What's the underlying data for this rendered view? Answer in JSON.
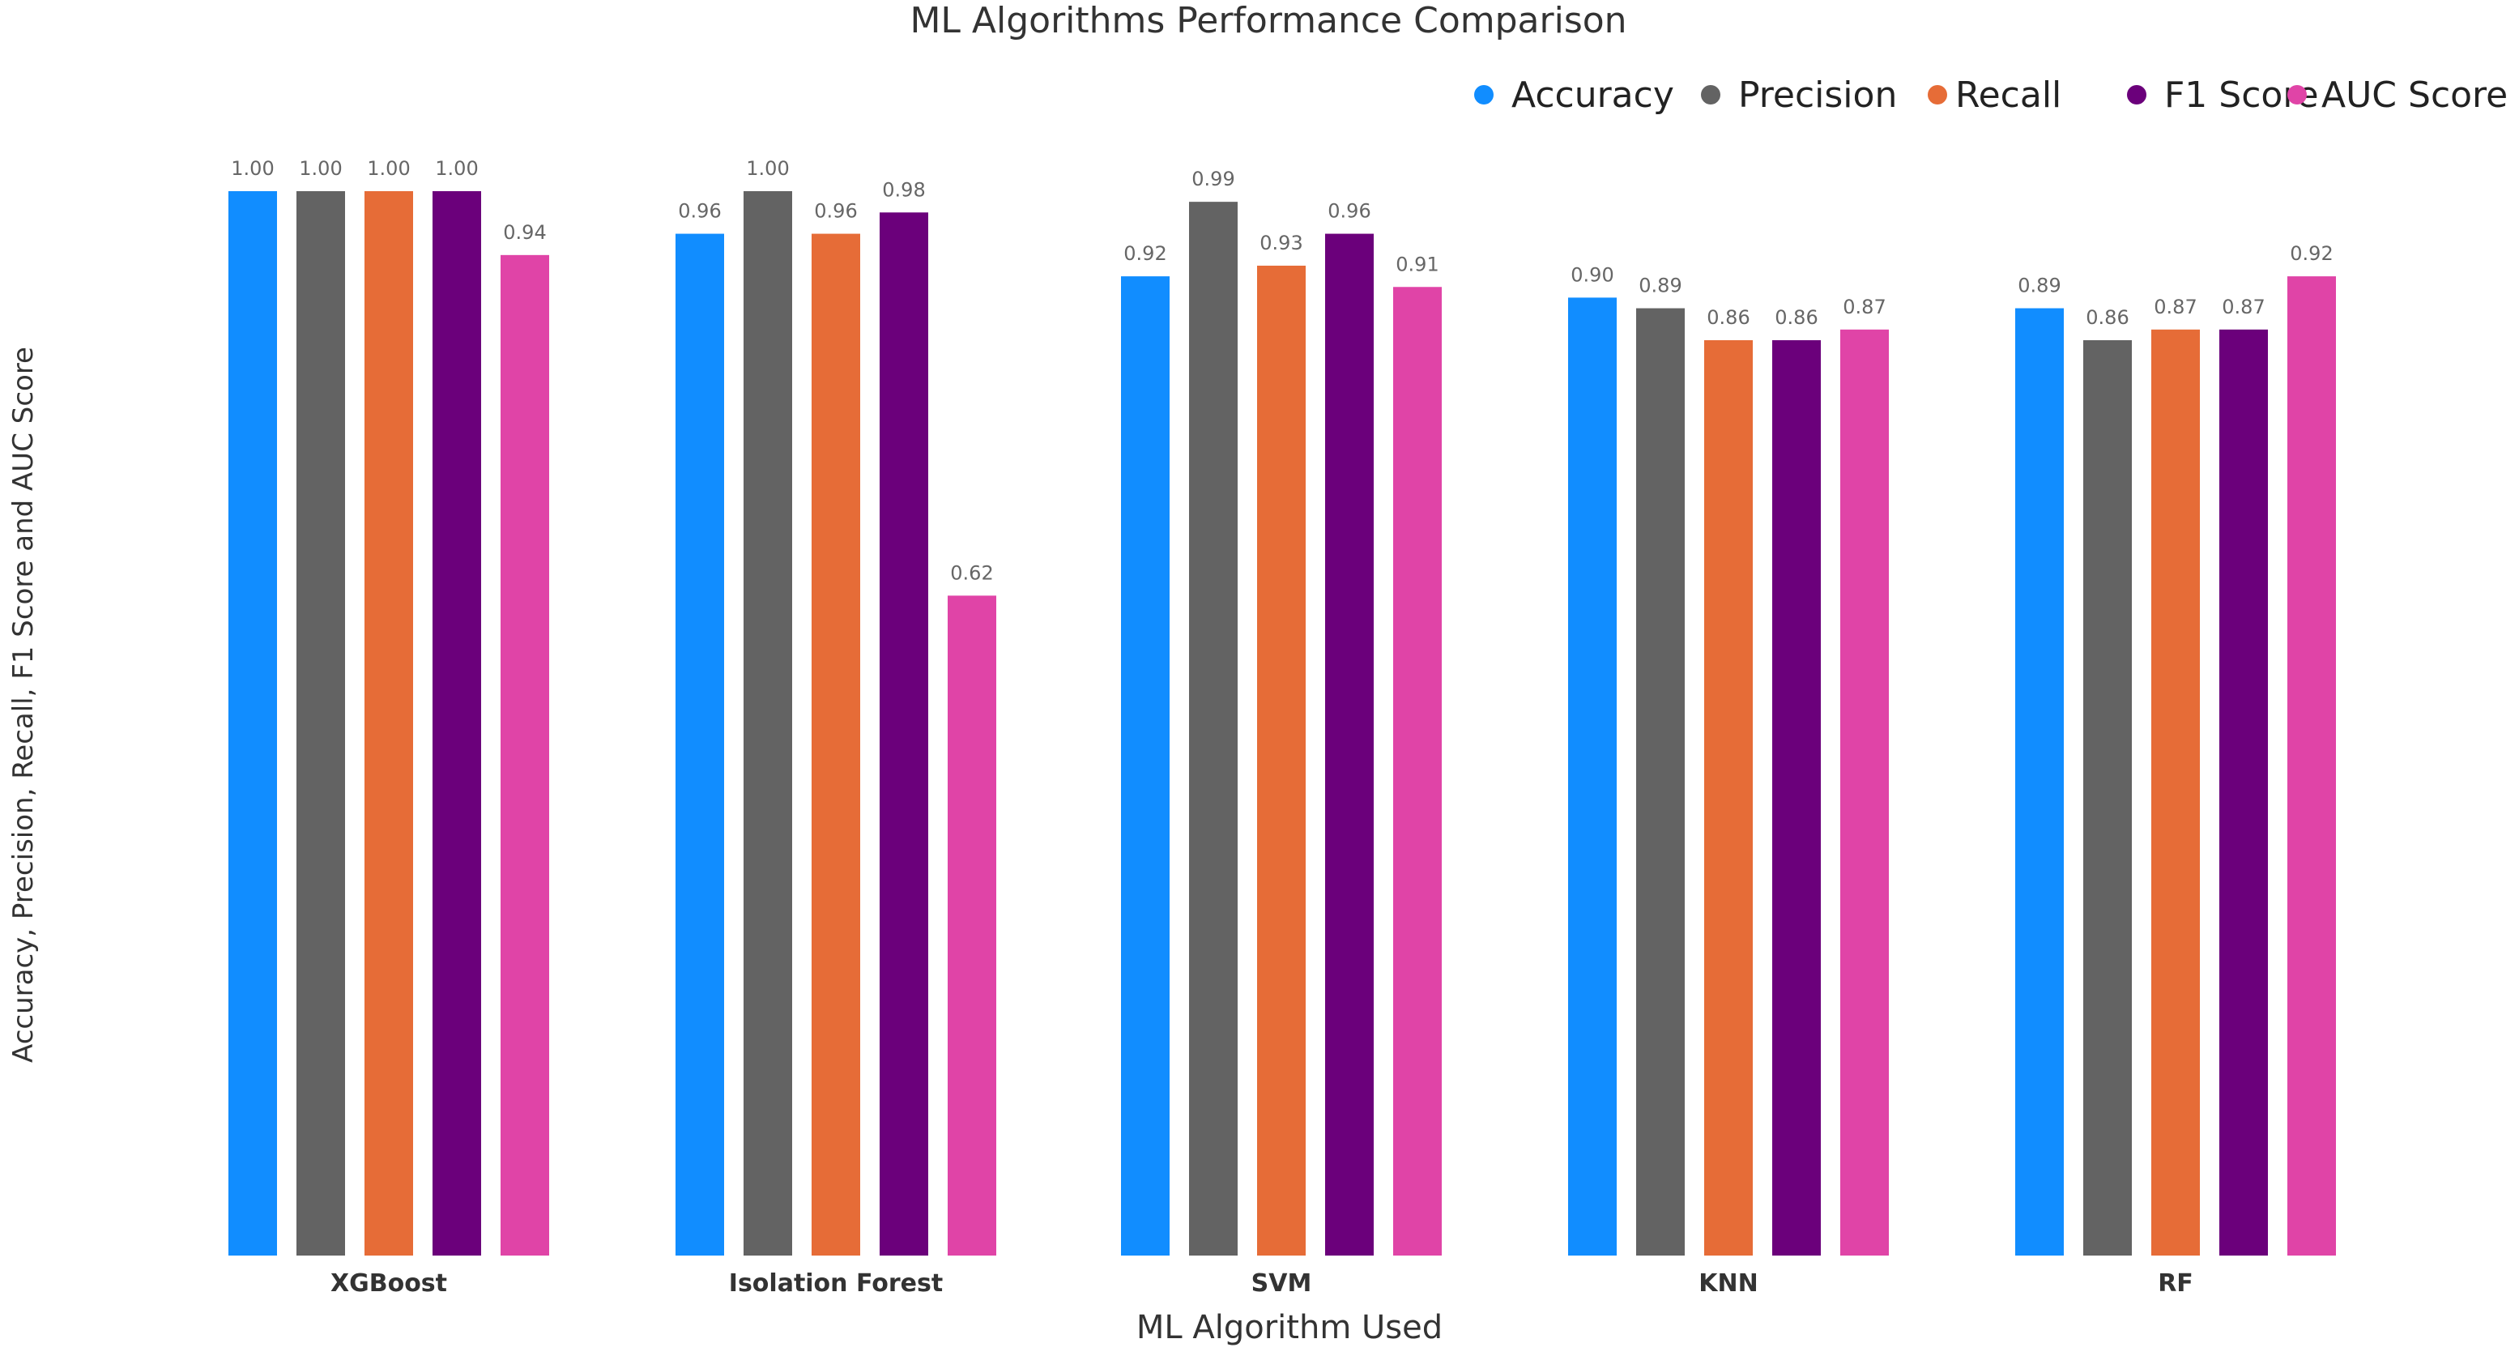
{
  "chart_data": {
    "type": "bar",
    "title": "ML Algorithms Performance Comparison",
    "xlabel": "ML Algorithm Used",
    "ylabel": "Accuracy, Precision, Recall, F1 Score and AUC Score",
    "categories": [
      "XGBoost",
      "Isolation Forest",
      "SVM",
      "KNN",
      "RF"
    ],
    "series": [
      {
        "name": "Accuracy",
        "color": "#118DFF",
        "values": [
          1.0,
          0.96,
          0.92,
          0.9,
          0.89
        ]
      },
      {
        "name": "Precision",
        "color": "#636363",
        "values": [
          1.0,
          1.0,
          0.99,
          0.89,
          0.86
        ]
      },
      {
        "name": "Recall",
        "color": "#E66C37",
        "values": [
          1.0,
          0.96,
          0.93,
          0.86,
          0.87
        ]
      },
      {
        "name": "F1 Score",
        "color": "#6B007B",
        "values": [
          1.0,
          0.98,
          0.96,
          0.86,
          0.87
        ]
      },
      {
        "name": "AUC Score",
        "color": "#E044A7",
        "values": [
          0.94,
          0.62,
          0.91,
          0.87,
          0.92
        ]
      }
    ],
    "ylim": [
      0,
      1.0
    ],
    "value_format": "0.00",
    "grid": false,
    "legend_position": "top-right"
  }
}
